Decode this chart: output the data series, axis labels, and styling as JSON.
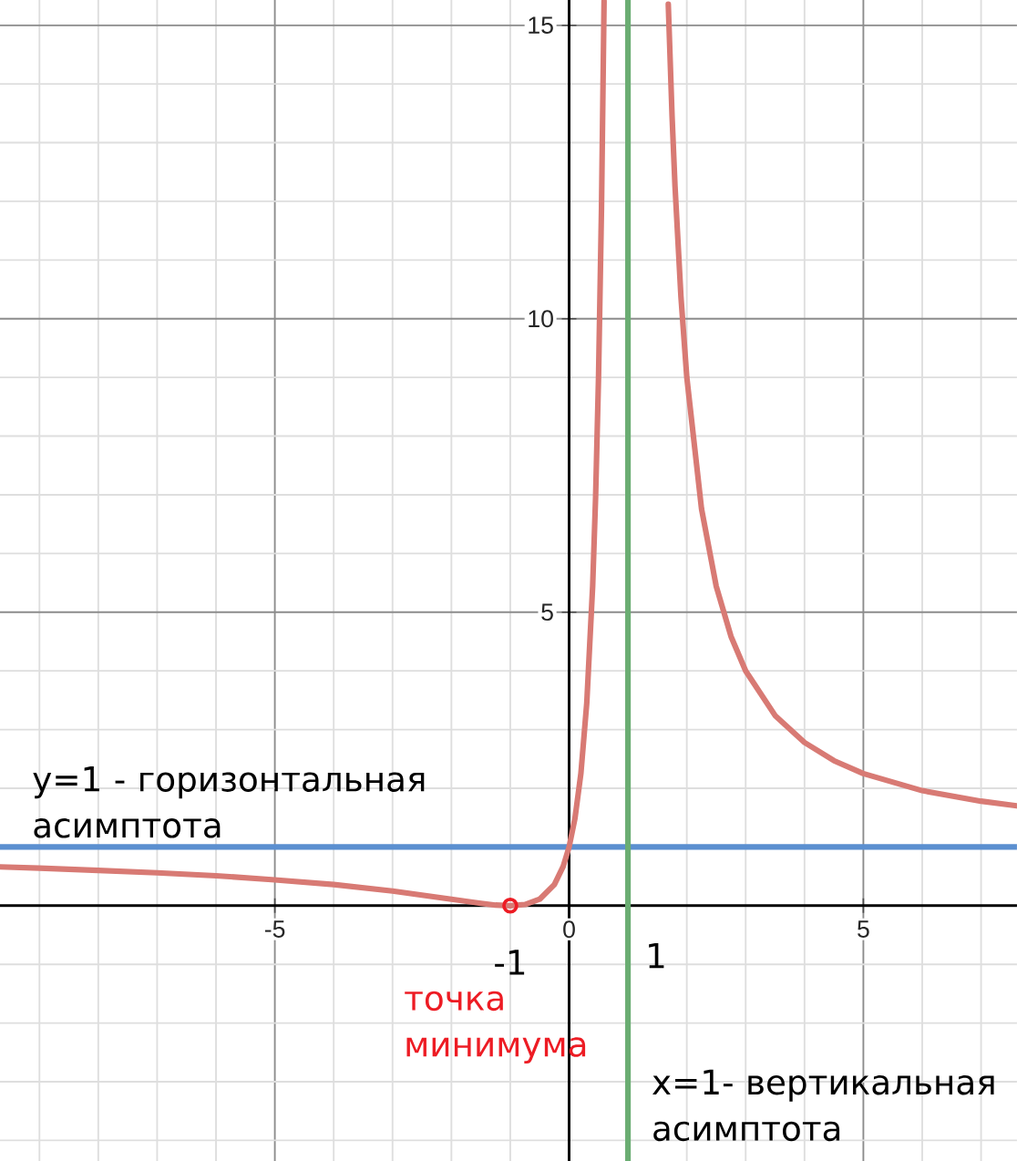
{
  "chart_data": {
    "type": "line",
    "xlim": [
      -9.67,
      7.61
    ],
    "ylim": [
      -4.35,
      15.43
    ],
    "xticks": [
      {
        "value": -9,
        "label": null
      },
      {
        "value": -8,
        "label": null
      },
      {
        "value": -7,
        "label": null
      },
      {
        "value": -6,
        "label": null
      },
      -5,
      {
        "value": -4,
        "label": null
      },
      {
        "value": -3,
        "label": null
      },
      {
        "value": -2,
        "label": null
      },
      {
        "value": -1,
        "label": null
      },
      0,
      {
        "value": 1,
        "label": null
      },
      {
        "value": 2,
        "label": null
      },
      {
        "value": 3,
        "label": null
      },
      {
        "value": 4,
        "label": null
      },
      5,
      {
        "value": 6,
        "label": null
      },
      {
        "value": 7,
        "label": null
      }
    ],
    "yticks": [
      {
        "value": -4,
        "label": null
      },
      {
        "value": -3,
        "label": null
      },
      {
        "value": -2,
        "label": null
      },
      {
        "value": -1,
        "label": null
      },
      {
        "value": 0,
        "label": null
      },
      {
        "value": 1,
        "label": null
      },
      {
        "value": 2,
        "label": null
      },
      {
        "value": 3,
        "label": null
      },
      {
        "value": 4,
        "label": null
      },
      5,
      {
        "value": 6,
        "label": null
      },
      {
        "value": 7,
        "label": null
      },
      {
        "value": 8,
        "label": null
      },
      {
        "value": 9,
        "label": null
      },
      10,
      {
        "value": 11,
        "label": null
      },
      {
        "value": 12,
        "label": null
      },
      {
        "value": 13,
        "label": null
      },
      {
        "value": 14,
        "label": null
      },
      15
    ],
    "grid": true,
    "series": [
      {
        "color": "#d87a74",
        "x": [
          -9.67,
          -9,
          -8,
          -7,
          -6,
          -5,
          -4,
          -3,
          -2.5,
          -2,
          -1.5,
          -1.25,
          -1,
          -0.75,
          -0.5,
          -0.25,
          -0.1,
          0,
          0.1,
          0.2,
          0.3,
          0.4,
          0.45,
          0.5,
          0.55,
          0.594,
          1,
          1.685,
          1.75,
          1.8,
          1.9,
          2,
          2.25,
          2.5,
          2.75,
          3,
          3.5,
          4,
          4.5,
          5,
          6,
          7,
          7.61
        ],
        "values": [
          0.66,
          0.64,
          0.6,
          0.56,
          0.51,
          0.44,
          0.36,
          0.25,
          0.18,
          0.11,
          0.04,
          0.01,
          0,
          0.02,
          0.11,
          0.36,
          0.67,
          1,
          1.49,
          2.25,
          3.45,
          5.44,
          6.95,
          9,
          11.86,
          15.41,
          null,
          15.36,
          13.44,
          12.25,
          10.38,
          9,
          6.76,
          5.44,
          4.59,
          4,
          3.24,
          2.78,
          2.47,
          2.25,
          1.96,
          1.78,
          1.7
        ]
      },
      {
        "type": "scatter",
        "name": "точка минимума",
        "color": "#ed1c24",
        "marker": "circle",
        "x": [
          -1
        ],
        "values": [
          0
        ]
      }
    ],
    "ref_lines": [
      {
        "axis": "y",
        "value": 1,
        "label": "y=1 - горизонтальная асимптота",
        "color": "#5b8fd0"
      },
      {
        "axis": "x",
        "value": 1,
        "label": "x=1- вертикальная асимптота",
        "color": "#6aad72"
      }
    ],
    "annotations": [
      {
        "text": "-1",
        "x": -1,
        "y": 0
      },
      "1"
    ]
  }
}
